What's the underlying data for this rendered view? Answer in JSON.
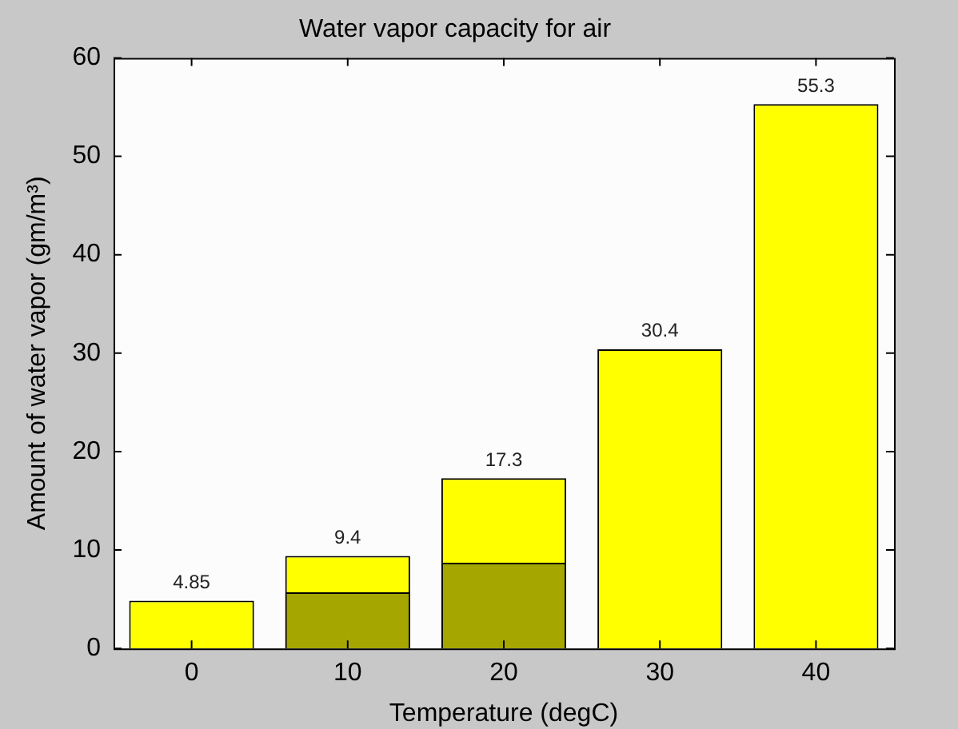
{
  "chart_data": {
    "type": "bar",
    "title": "Water vapor capacity for air",
    "xlabel": "Temperature (degC)",
    "ylabel": "Amount of water vapor (gm/m³)",
    "categories": [
      "0",
      "10",
      "20",
      "30",
      "40"
    ],
    "series": [
      {
        "color": "#ffff00",
        "values": [
          4.85,
          9.4,
          17.3,
          30.4,
          55.3
        ],
        "value_labels": [
          "4.85",
          "9.4",
          "17.3",
          "30.4",
          "55.3"
        ]
      },
      {
        "color": "#a6a600",
        "values": [
          null,
          5.7,
          8.7,
          null,
          null
        ]
      }
    ],
    "ylim": [
      0,
      60
    ],
    "yticks": [
      0,
      10,
      20,
      30,
      40,
      50,
      60
    ],
    "grid": false,
    "legend": false
  }
}
